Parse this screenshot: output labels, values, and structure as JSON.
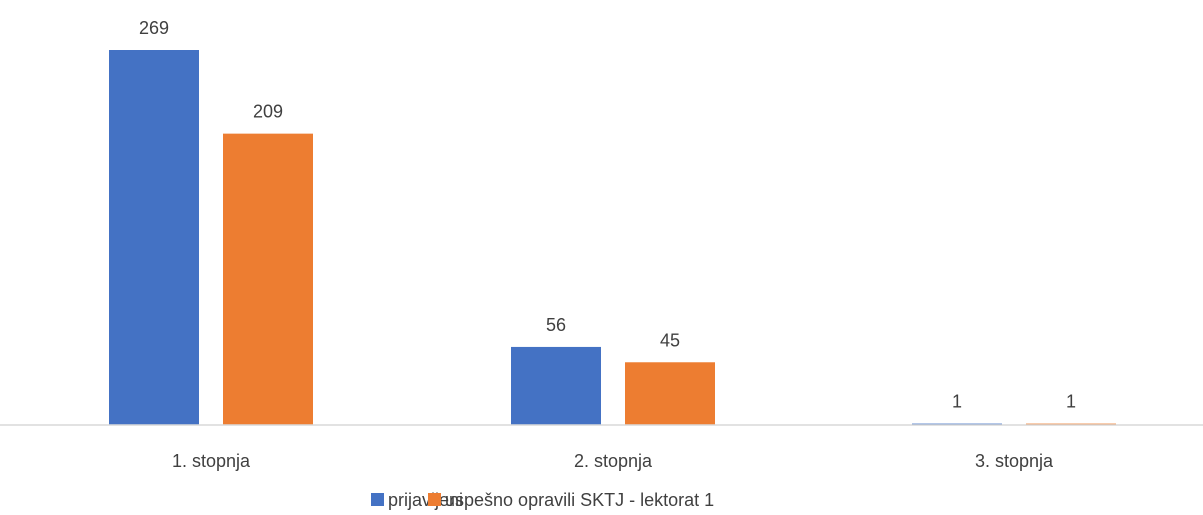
{
  "chart_data": {
    "type": "bar",
    "categories": [
      "1. stopnja",
      "2. stopnja",
      "3. stopnja"
    ],
    "series": [
      {
        "name": "prijavljeni",
        "values": [
          269,
          56,
          1
        ],
        "color": "#4472C4"
      },
      {
        "name": "uspešno opravili SKTJ - lektorat 1",
        "values": [
          209,
          45,
          1
        ],
        "color": "#ED7D31"
      }
    ],
    "ylim": [
      0,
      300
    ],
    "grid": false,
    "legend_position": "bottom",
    "data_labels": true,
    "axis_color": "#D9D9D9"
  }
}
